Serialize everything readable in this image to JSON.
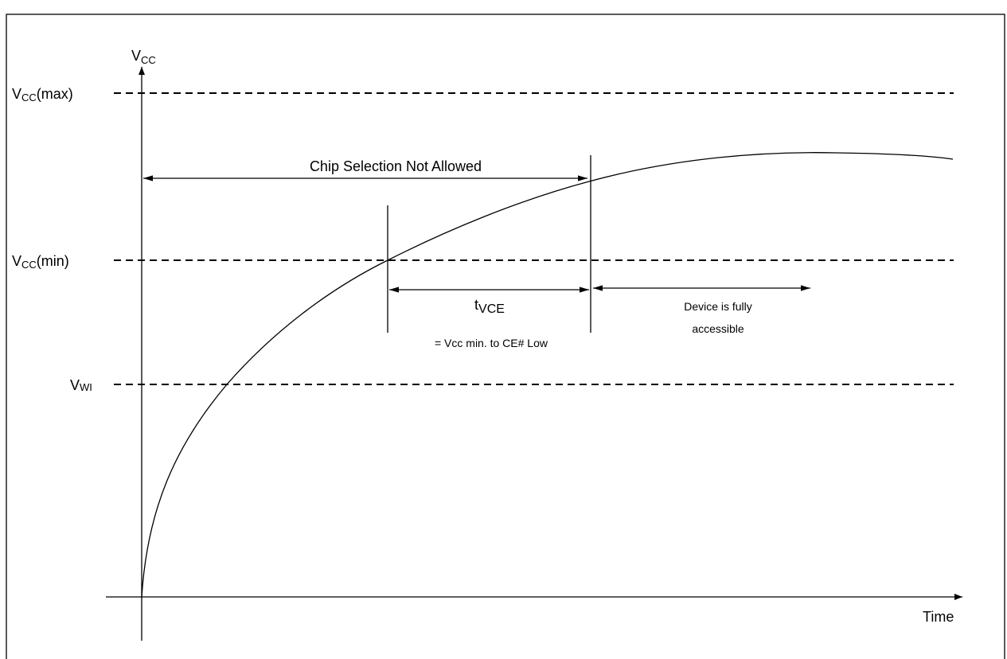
{
  "axes": {
    "y_label": {
      "base": "V",
      "sub": "CC"
    },
    "x_label": "Time"
  },
  "levels": [
    {
      "base": "V",
      "sub": "CC",
      "suffix": "(max)"
    },
    {
      "base": "V",
      "sub": "CC",
      "suffix": "(min)"
    },
    {
      "base": "V",
      "sub": "WI"
    }
  ],
  "annotations": {
    "chip_selection": "Chip Selection Not Allowed",
    "tvce": {
      "base": "t",
      "sub": "VCE"
    },
    "tvce_note": "= Vcc min. to CE# Low",
    "accessible": [
      "Device is fully",
      "accessible"
    ]
  }
}
